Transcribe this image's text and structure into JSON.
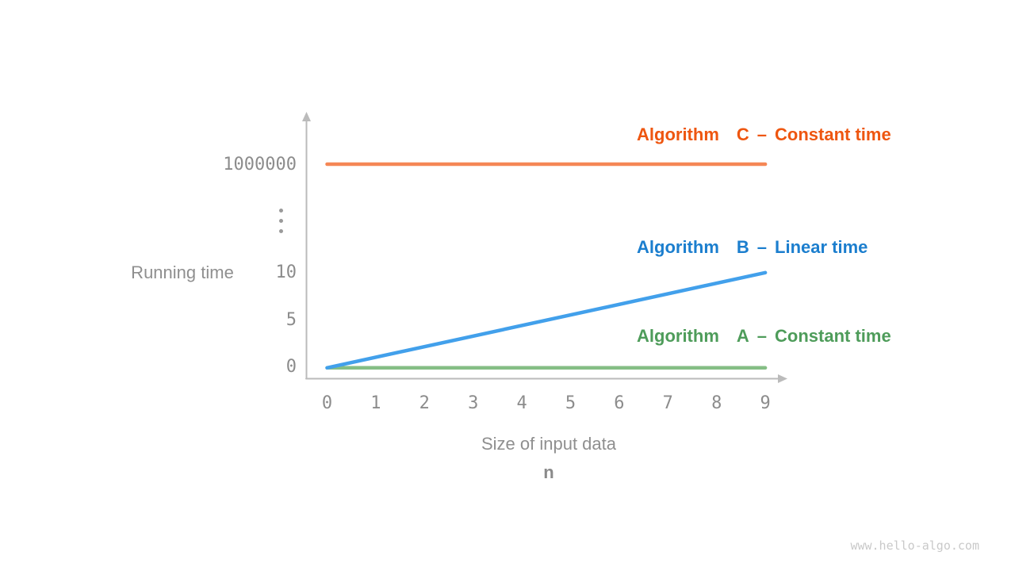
{
  "page": {
    "background": "#FFFFFF",
    "watermark": "www.hello-algo.com"
  },
  "chart_data": {
    "type": "line",
    "title": "",
    "x_axis": {
      "title": "Size of input data",
      "symbol": "n",
      "ticks": [
        "0",
        "1",
        "2",
        "3",
        "4",
        "5",
        "6",
        "7",
        "8",
        "9"
      ],
      "range": [
        0,
        9
      ]
    },
    "y_axis": {
      "title": "Running time",
      "ticks": [
        "0",
        "5",
        "10",
        "⋮",
        "1000000"
      ],
      "has_break": true,
      "range_lower_segment": [
        0,
        10
      ],
      "upper_value": 1000000
    },
    "axis_color": "#BBBBBB",
    "tick_color": "#8C8C8C",
    "grid": "off",
    "legend_position": "right-inside",
    "series": [
      {
        "word": "Algorithm",
        "letter": "C",
        "dash": "–",
        "description": "Constant time",
        "name": "Algorithm C",
        "line_color": "#F58755",
        "text_color": "#EE5610",
        "points": [
          [
            0,
            1000000
          ],
          [
            9,
            1000000
          ]
        ]
      },
      {
        "word": "Algorithm",
        "letter": "B",
        "dash": "–",
        "description": "Linear time",
        "name": "Algorithm B",
        "line_color": "#42A0EB",
        "text_color": "#1B7ECE",
        "points": [
          [
            0,
            0
          ],
          [
            9,
            10
          ]
        ]
      },
      {
        "word": "Algorithm",
        "letter": "A",
        "dash": "–",
        "description": "Constant time",
        "name": "Algorithm A",
        "line_color": "#85BE85",
        "text_color": "#4E9C5A",
        "points": [
          [
            0,
            0
          ],
          [
            9,
            0
          ]
        ]
      }
    ]
  }
}
